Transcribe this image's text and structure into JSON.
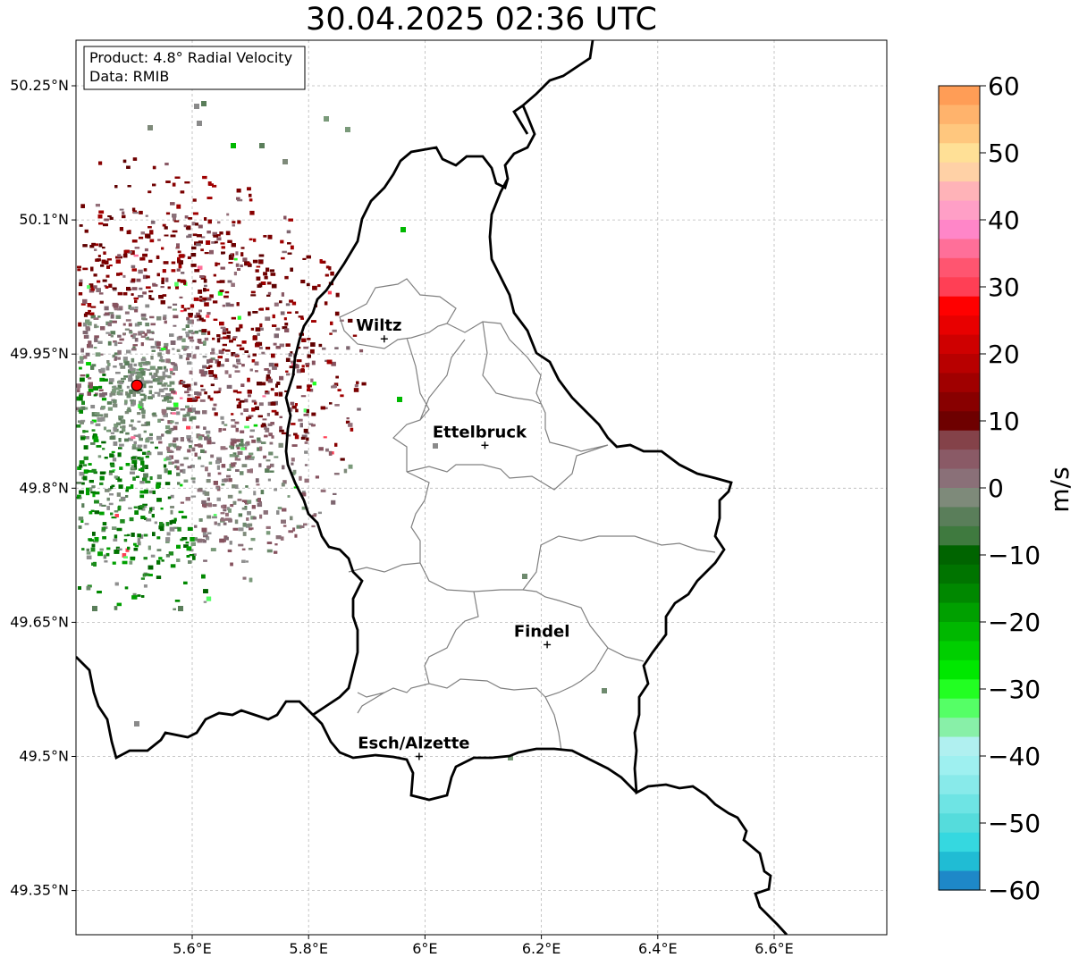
{
  "title": "30.04.2025 02:36 UTC",
  "info_box": {
    "line1": "Product: 4.8° Radial Velocity",
    "line2": "Data: RMIB"
  },
  "map": {
    "lon_ticks": [
      {
        "value": 5.6,
        "label": "5.6°E"
      },
      {
        "value": 5.8,
        "label": "5.8°E"
      },
      {
        "value": 6.0,
        "label": "6°E"
      },
      {
        "value": 6.2,
        "label": "6.2°E"
      },
      {
        "value": 6.4,
        "label": "6.4°E"
      },
      {
        "value": 6.6,
        "label": "6.6°E"
      }
    ],
    "lat_ticks": [
      {
        "value": 50.25,
        "label": "50.25°N"
      },
      {
        "value": 50.1,
        "label": "50.1°N"
      },
      {
        "value": 49.95,
        "label": "49.95°N"
      },
      {
        "value": 49.8,
        "label": "49.8°N"
      },
      {
        "value": 49.65,
        "label": "49.65°N"
      },
      {
        "value": 49.5,
        "label": "49.5°N"
      },
      {
        "value": 49.35,
        "label": "49.35°N"
      }
    ],
    "cities": [
      {
        "name": "Wiltz",
        "lon": 5.93,
        "lat": 49.967
      },
      {
        "name": "Ettelbruck",
        "lon": 6.103,
        "lat": 49.848
      },
      {
        "name": "Findel",
        "lon": 6.21,
        "lat": 49.625
      },
      {
        "name": "Esch/Alzette",
        "lon": 5.99,
        "lat": 49.5
      }
    ],
    "radar_site": {
      "lon": 5.505,
      "lat": 49.915,
      "color": "#ff0000"
    }
  },
  "colorbar": {
    "label": "m/s",
    "ticks": [
      {
        "value": 60,
        "label": "60"
      },
      {
        "value": 50,
        "label": "50"
      },
      {
        "value": 40,
        "label": "40"
      },
      {
        "value": 30,
        "label": "30"
      },
      {
        "value": 20,
        "label": "20"
      },
      {
        "value": 10,
        "label": "10"
      },
      {
        "value": 0,
        "label": "0"
      },
      {
        "value": -10,
        "label": "−10"
      },
      {
        "value": -20,
        "label": "−20"
      },
      {
        "value": -30,
        "label": "−30"
      },
      {
        "value": -40,
        "label": "−40"
      },
      {
        "value": -50,
        "label": "−50"
      },
      {
        "value": -60,
        "label": "−60"
      }
    ],
    "colors": [
      "#ff9d56",
      "#ffb36c",
      "#ffc77e",
      "#ffe096",
      "#ffd1a6",
      "#ffb3b8",
      "#ff9fc6",
      "#ff86c8",
      "#ff6f99",
      "#ff5570",
      "#ff3f55",
      "#ff0000",
      "#e80000",
      "#cf0000",
      "#b80000",
      "#a00000",
      "#880000",
      "#6e0000",
      "#844249",
      "#8a5a66",
      "#8a7078",
      "#7e8a7a",
      "#5a7e5a",
      "#3f7a3f",
      "#006400",
      "#007400",
      "#008800",
      "#00a000",
      "#00b800",
      "#00cf00",
      "#00e800",
      "#22ff22",
      "#55ff66",
      "#88f0a8",
      "#b0f0f0",
      "#9ef0f0",
      "#88eaea",
      "#6ee4e4",
      "#55dcdc",
      "#35d8e0",
      "#20bcd4",
      "#1e88c8"
    ]
  }
}
